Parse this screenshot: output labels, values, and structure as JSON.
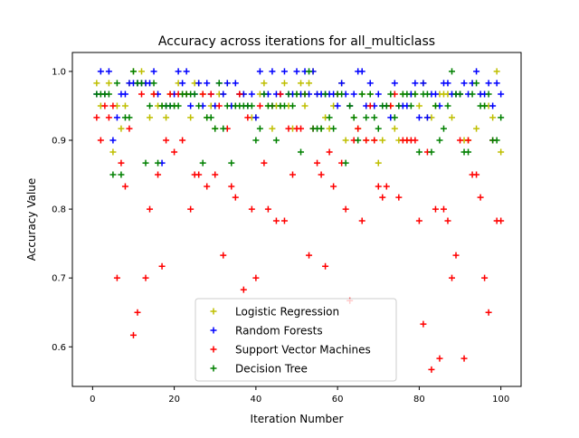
{
  "chart_data": {
    "type": "scatter",
    "title": "Accuracy across iterations for all_multiclass",
    "xlabel": "Iteration Number",
    "ylabel": "Accuracy Value",
    "xlim": [
      -4.95,
      104.95
    ],
    "ylim": [
      0.5425,
      1.0275
    ],
    "xticks": [
      0,
      20,
      40,
      60,
      80,
      100
    ],
    "yticks": [
      0.6,
      0.7,
      0.8,
      0.9,
      1.0
    ],
    "xtick_labels": [
      "0",
      "20",
      "40",
      "60",
      "80",
      "100"
    ],
    "ytick_labels": [
      "0.6",
      "0.7",
      "0.8",
      "0.9",
      "1.0"
    ],
    "marker": "+",
    "grid": false,
    "legend_position": "lower-center",
    "x": [
      1,
      2,
      3,
      4,
      5,
      6,
      7,
      8,
      9,
      10,
      11,
      12,
      13,
      14,
      15,
      16,
      17,
      18,
      19,
      20,
      21,
      22,
      23,
      24,
      25,
      26,
      27,
      28,
      29,
      30,
      31,
      32,
      33,
      34,
      35,
      36,
      37,
      38,
      39,
      40,
      41,
      42,
      43,
      44,
      45,
      46,
      47,
      48,
      49,
      50,
      51,
      52,
      53,
      54,
      55,
      56,
      57,
      58,
      59,
      60,
      61,
      62,
      63,
      64,
      65,
      66,
      67,
      68,
      69,
      70,
      71,
      72,
      73,
      74,
      75,
      76,
      77,
      78,
      79,
      80,
      81,
      82,
      83,
      84,
      85,
      86,
      87,
      88,
      89,
      90,
      91,
      92,
      93,
      94,
      95,
      96,
      97,
      98,
      99,
      100
    ],
    "series": [
      {
        "name": "Logistic Regression",
        "color": "#bfbf00",
        "values": [
          0.983,
          0.95,
          0.967,
          0.983,
          0.883,
          0.95,
          0.917,
          0.95,
          0.983,
          1.0,
          0.983,
          1.0,
          0.983,
          0.933,
          0.967,
          0.95,
          0.95,
          0.933,
          0.967,
          0.95,
          0.983,
          0.967,
          0.967,
          0.933,
          0.983,
          0.983,
          0.967,
          0.933,
          0.95,
          0.917,
          0.967,
          0.967,
          0.983,
          0.95,
          0.95,
          0.967,
          0.967,
          0.95,
          0.933,
          0.933,
          0.967,
          0.983,
          0.95,
          0.917,
          0.95,
          0.95,
          0.983,
          0.95,
          0.917,
          0.967,
          0.983,
          0.95,
          0.983,
          1.0,
          0.967,
          0.917,
          0.933,
          0.917,
          0.95,
          0.967,
          0.983,
          0.9,
          0.95,
          0.933,
          0.917,
          0.967,
          0.9,
          0.967,
          0.9,
          0.867,
          0.9,
          0.95,
          0.95,
          0.917,
          0.9,
          0.967,
          0.9,
          0.967,
          0.967,
          0.95,
          0.983,
          0.933,
          0.933,
          0.95,
          0.967,
          0.967,
          0.967,
          0.933,
          0.967,
          0.967,
          0.9,
          0.9,
          0.983,
          0.917,
          0.967,
          0.95,
          0.95,
          0.933,
          1.0,
          0.883
        ]
      },
      {
        "name": "Random Forests",
        "color": "#0000ff",
        "values": [
          0.967,
          1.0,
          0.967,
          1.0,
          0.9,
          0.933,
          0.967,
          0.967,
          0.983,
          0.983,
          0.983,
          0.983,
          0.983,
          0.983,
          1.0,
          0.967,
          0.867,
          0.95,
          0.95,
          0.967,
          1.0,
          0.983,
          1.0,
          0.95,
          0.967,
          0.983,
          0.95,
          0.983,
          0.967,
          0.95,
          0.983,
          0.967,
          0.983,
          0.95,
          0.983,
          0.967,
          0.967,
          0.95,
          0.967,
          0.933,
          1.0,
          0.967,
          0.967,
          1.0,
          0.967,
          0.967,
          1.0,
          0.967,
          0.967,
          1.0,
          0.967,
          1.0,
          0.967,
          1.0,
          0.967,
          0.967,
          0.967,
          0.967,
          0.967,
          0.95,
          0.983,
          0.967,
          0.95,
          0.967,
          1.0,
          1.0,
          0.95,
          0.983,
          0.95,
          0.967,
          0.95,
          0.95,
          0.933,
          0.983,
          0.95,
          0.95,
          0.95,
          0.967,
          0.983,
          0.933,
          0.983,
          0.933,
          0.967,
          0.967,
          0.95,
          0.983,
          0.983,
          0.967,
          0.967,
          0.967,
          0.983,
          0.967,
          0.983,
          1.0,
          0.967,
          0.967,
          0.983,
          0.95,
          0.983,
          0.967
        ]
      },
      {
        "name": "Support Vector Machines",
        "color": "#ff0000",
        "values": [
          0.933,
          0.9,
          0.95,
          0.933,
          0.95,
          0.7,
          0.867,
          0.833,
          0.917,
          0.617,
          0.65,
          0.967,
          0.7,
          0.8,
          0.967,
          0.85,
          0.717,
          0.9,
          0.967,
          0.883,
          0.967,
          0.9,
          0.967,
          0.8,
          0.85,
          0.85,
          0.967,
          0.833,
          0.967,
          0.85,
          0.95,
          0.733,
          0.917,
          0.833,
          0.817,
          0.967,
          0.683,
          0.933,
          0.8,
          0.7,
          0.95,
          0.867,
          0.8,
          0.95,
          0.783,
          0.967,
          0.783,
          0.917,
          0.85,
          0.917,
          0.917,
          0.967,
          0.733,
          0.917,
          0.867,
          0.85,
          0.717,
          0.883,
          0.833,
          0.967,
          0.867,
          0.8,
          0.667,
          0.9,
          0.917,
          0.783,
          0.9,
          0.95,
          0.9,
          0.833,
          0.817,
          0.833,
          0.95,
          0.967,
          0.817,
          0.9,
          0.9,
          0.9,
          0.9,
          0.783,
          0.633,
          0.883,
          0.567,
          0.8,
          0.583,
          0.8,
          0.783,
          0.7,
          0.733,
          0.9,
          0.583,
          0.9,
          0.85,
          0.85,
          0.817,
          0.7,
          0.65,
          0.9,
          0.783,
          0.783
        ]
      },
      {
        "name": "Decision Tree",
        "color": "#008000",
        "values": [
          0.967,
          0.967,
          0.967,
          0.967,
          0.85,
          0.983,
          0.85,
          0.933,
          0.933,
          1.0,
          0.983,
          0.983,
          0.867,
          0.95,
          0.983,
          0.867,
          0.95,
          0.95,
          0.95,
          0.95,
          0.95,
          0.967,
          0.967,
          0.967,
          0.967,
          0.95,
          0.867,
          0.933,
          0.933,
          0.917,
          0.983,
          0.917,
          0.95,
          0.867,
          0.95,
          0.95,
          0.95,
          0.95,
          0.95,
          0.9,
          0.917,
          0.967,
          0.95,
          0.95,
          0.9,
          0.95,
          0.95,
          0.967,
          0.95,
          0.967,
          0.883,
          0.967,
          1.0,
          0.917,
          0.917,
          0.917,
          0.967,
          0.933,
          0.917,
          0.967,
          0.967,
          0.867,
          0.95,
          0.933,
          0.9,
          0.967,
          0.933,
          0.967,
          0.933,
          0.917,
          0.95,
          0.95,
          0.967,
          0.933,
          0.95,
          0.967,
          0.967,
          0.95,
          0.967,
          0.883,
          0.967,
          0.967,
          0.883,
          0.95,
          0.9,
          0.917,
          0.95,
          1.0,
          0.967,
          0.967,
          0.883,
          0.883,
          0.967,
          0.983,
          0.95,
          0.95,
          0.967,
          0.9,
          0.9,
          0.933
        ]
      }
    ]
  }
}
